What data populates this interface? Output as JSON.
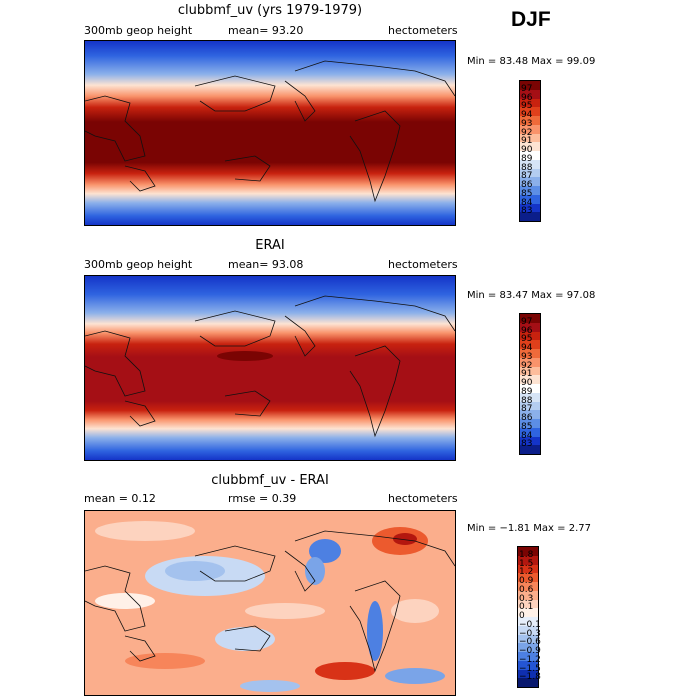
{
  "season": "DJF",
  "chart_data": [
    {
      "type": "heatmap",
      "title": "clubbmf_uv (yrs 1979-1979)",
      "left_label": "300mb geop height",
      "center_label": "mean=   93.20",
      "right_label": "hectometers",
      "min_max": "Min =   83.48  Max =   99.09",
      "min": 83.48,
      "max": 99.09,
      "colorbar": {
        "labels": [
          "97",
          "96",
          "95",
          "94",
          "93",
          "92",
          "91",
          "90",
          "89",
          "88",
          "87",
          "86",
          "85",
          "84",
          "83"
        ],
        "colors": [
          "#7a0403",
          "#a50f15",
          "#c8220f",
          "#e0401b",
          "#ef6a3a",
          "#f9936b",
          "#fdbd9c",
          "#fde3d2",
          "#ffffff",
          "#d6e4f6",
          "#b4cdf0",
          "#8bb0ea",
          "#5c8ee6",
          "#2f64e0",
          "#1434c8",
          "#0b1e8a"
        ]
      }
    },
    {
      "type": "heatmap",
      "title": "ERAI",
      "left_label": "300mb geop height",
      "center_label": "mean=   93.08",
      "right_label": "hectometers",
      "min_max": "Min =   83.47  Max =   97.08",
      "min": 83.47,
      "max": 97.08,
      "colorbar": {
        "labels": [
          "97",
          "96",
          "95",
          "94",
          "93",
          "92",
          "91",
          "90",
          "89",
          "88",
          "87",
          "86",
          "85",
          "84",
          "83"
        ],
        "colors": [
          "#7a0403",
          "#a50f15",
          "#c8220f",
          "#e0401b",
          "#ef6a3a",
          "#f9936b",
          "#fdbd9c",
          "#fde3d2",
          "#ffffff",
          "#d6e4f6",
          "#b4cdf0",
          "#8bb0ea",
          "#5c8ee6",
          "#2f64e0",
          "#1434c8",
          "#0b1e8a"
        ]
      }
    },
    {
      "type": "heatmap",
      "title": "clubbmf_uv - ERAI",
      "left_label": "mean =    0.12",
      "center_label": "rmse =   0.39",
      "right_label": "hectometers",
      "min_max": "Min =  −1.81  Max =    2.77",
      "min": -1.81,
      "max": 2.77,
      "colorbar": {
        "labels": [
          "1.8",
          "1.5",
          "1.2",
          "0.9",
          "0.6",
          "0.3",
          "0.1",
          "0",
          "−0.1",
          "−0.3",
          "−0.6",
          "−0.9",
          "−1.2",
          "−1.5",
          "−1.8"
        ],
        "colors": [
          "#7a0403",
          "#b3170f",
          "#d83217",
          "#ec5a2e",
          "#f7855a",
          "#fbae8c",
          "#fdd3bf",
          "#fff1e8",
          "#e6eefa",
          "#c8daf4",
          "#a4c2ee",
          "#7aa4e8",
          "#4d80e2",
          "#2455d4",
          "#0f2fb0",
          "#08186e"
        ]
      }
    }
  ]
}
